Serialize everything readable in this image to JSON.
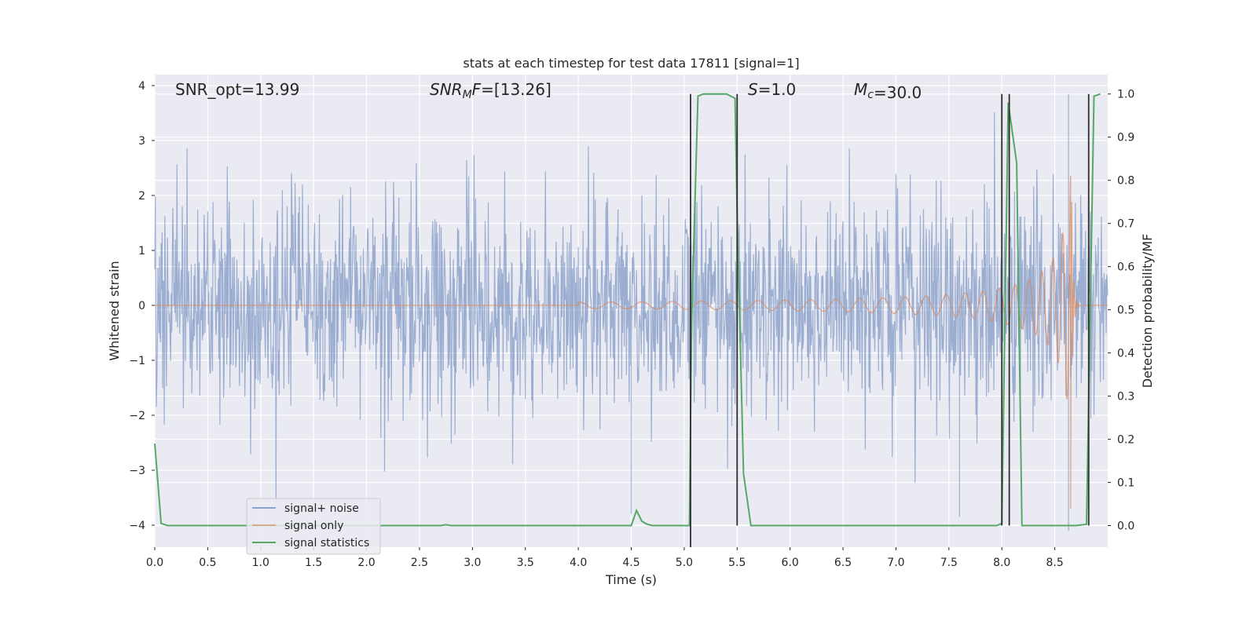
{
  "chart_data": {
    "type": "line",
    "title": "stats at each timestep for test data 17811 [signal=1]",
    "xlabel": "Time (s)",
    "ylabel": "Whitened strain",
    "y2label": "Detection probability/MF",
    "xlim": [
      0.0,
      9.0
    ],
    "ylim": [
      -4.4,
      4.2
    ],
    "y2lim": [
      -0.05,
      1.045
    ],
    "x_ticks": [
      "0.0",
      "0.5",
      "1.0",
      "1.5",
      "2.0",
      "2.5",
      "3.0",
      "3.5",
      "4.0",
      "4.5",
      "5.0",
      "5.5",
      "6.0",
      "6.5",
      "7.0",
      "7.5",
      "8.0",
      "8.5"
    ],
    "y_ticks": [
      "4",
      "3",
      "2",
      "1",
      "0",
      "−1",
      "−2",
      "−3",
      "−4"
    ],
    "y2_ticks": [
      "1.0",
      "0.9",
      "0.8",
      "0.7",
      "0.6",
      "0.5",
      "0.4",
      "0.3",
      "0.2",
      "0.1",
      "0.0"
    ],
    "grid": true,
    "background": "#eaeaf2",
    "annotations": [
      {
        "id": "snr_opt",
        "text": "SNR_opt=13.99"
      },
      {
        "id": "snr_mf",
        "text": "SNR_MF=[13.26]"
      },
      {
        "id": "s",
        "text": "S=1.0"
      },
      {
        "id": "mc",
        "text": "M_c=30.0"
      }
    ],
    "legend": {
      "placement": "lower-left",
      "entries": [
        {
          "name": "signal+ noise",
          "color": "#4c72b0"
        },
        {
          "name": "signal only",
          "color": "#dd8452"
        },
        {
          "name": "signal statistics",
          "color": "#55a868"
        }
      ]
    },
    "series": [
      {
        "name": "signal+ noise",
        "axis": "left",
        "style": "noise",
        "color": "#4c72b0",
        "alpha": 0.5,
        "t_range": [
          0.0,
          9.0
        ],
        "typical_amplitude": 1.0,
        "peak_envelope": 3.2,
        "notable_extremes": [
          {
            "x": 8.63,
            "y": 3.85
          },
          {
            "x": 8.63,
            "y": -4.1
          },
          {
            "x": 4.5,
            "y": -3.8
          },
          {
            "x": 7.6,
            "y": -3.85
          }
        ]
      },
      {
        "name": "signal only",
        "axis": "left",
        "style": "chirp",
        "color": "#dd8452",
        "t_start": 4.0,
        "t_merge": 8.65,
        "peak": 3.45
      },
      {
        "name": "signal statistics",
        "axis": "right",
        "color": "#55a868",
        "x": [
          0.0,
          0.06,
          0.12,
          1.0,
          2.0,
          2.7,
          2.75,
          2.8,
          3.5,
          4.0,
          4.5,
          4.55,
          4.6,
          4.65,
          4.7,
          5.05,
          5.07,
          5.13,
          5.18,
          5.4,
          5.48,
          5.5,
          5.56,
          5.63,
          6.0,
          7.0,
          7.95,
          8.0,
          8.06,
          8.14,
          8.19,
          8.3,
          8.5,
          8.7,
          8.8,
          8.87,
          8.93
        ],
        "y": [
          0.19,
          0.005,
          0.0,
          0.0,
          0.0,
          0.0,
          0.002,
          0.0,
          0.0,
          0.0,
          0.0,
          0.035,
          0.01,
          0.003,
          0.0,
          0.0,
          0.47,
          0.995,
          1.0,
          1.0,
          0.99,
          0.72,
          0.12,
          0.0,
          0.0,
          0.0,
          0.0,
          0.005,
          0.98,
          0.84,
          0.0,
          0.0,
          0.0,
          0.0,
          0.003,
          0.995,
          1.0
        ]
      }
    ],
    "vertical_lines": [
      {
        "x": 5.06,
        "ymin": -0.05,
        "ymax": 1.0,
        "color": "#2f2f2f"
      },
      {
        "x": 5.5,
        "ymin": 0.0,
        "ymax": 1.0,
        "color": "#2f2f2f"
      },
      {
        "x": 8.0,
        "ymin": 0.0,
        "ymax": 1.0,
        "color": "#2f2f2f"
      },
      {
        "x": 8.07,
        "ymin": 0.0,
        "ymax": 1.0,
        "color": "#2f2f2f"
      },
      {
        "x": 8.82,
        "ymin": 0.0,
        "ymax": 1.0,
        "color": "#2f2f2f"
      }
    ]
  }
}
